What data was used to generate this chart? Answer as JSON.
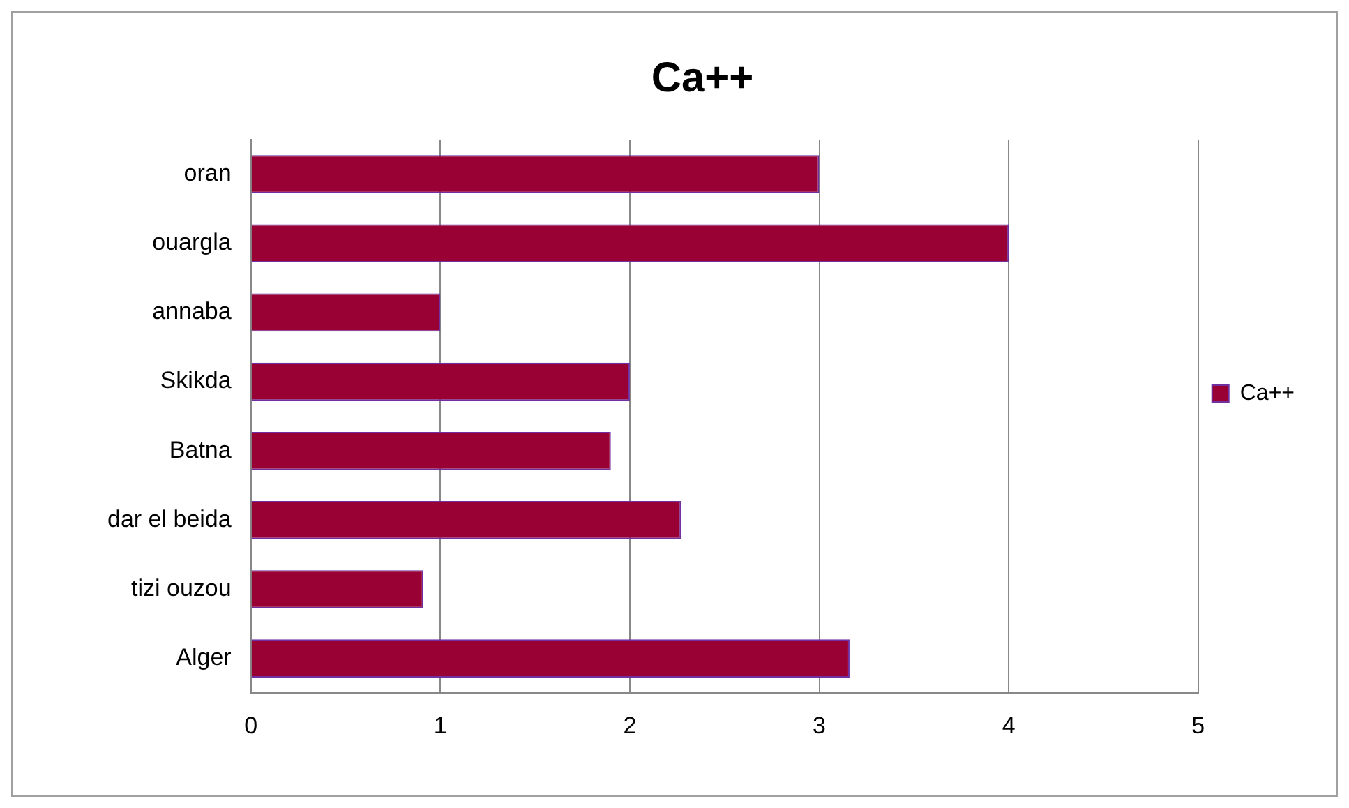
{
  "chart_data": {
    "type": "bar",
    "orientation": "horizontal",
    "title": "Ca++",
    "categories": [
      "oran",
      "ouargla",
      "annaba",
      "Skikda",
      "Batna",
      "dar el beida",
      "tizi ouzou",
      "Alger"
    ],
    "series": [
      {
        "name": "Ca++",
        "color": "#990033",
        "values": [
          3.0,
          4.0,
          1.0,
          2.0,
          1.9,
          2.27,
          0.91,
          3.16
        ]
      }
    ],
    "xlim": [
      0,
      5
    ],
    "xticks": [
      0,
      1,
      2,
      3,
      4,
      5
    ],
    "grid": "x",
    "legend": "right"
  }
}
